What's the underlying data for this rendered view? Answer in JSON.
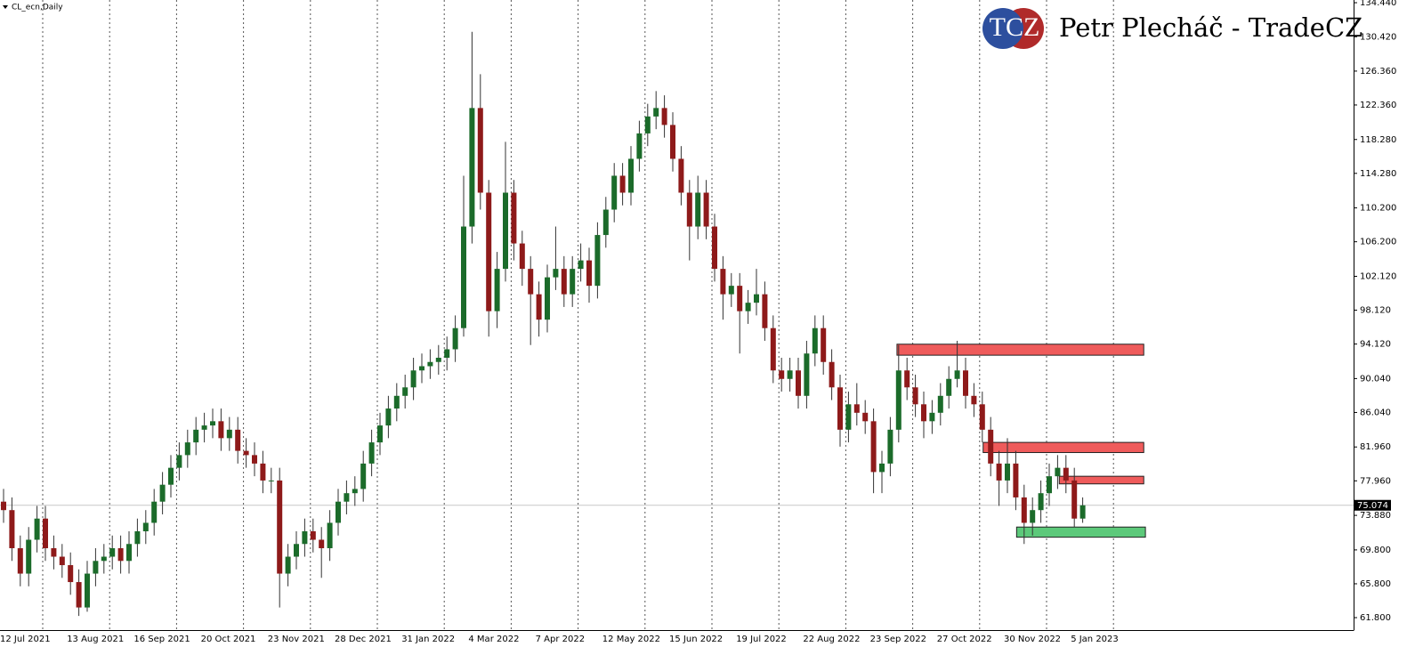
{
  "chart_data": {
    "type": "candlestick",
    "title": "CL_ecn,Daily",
    "brand": {
      "logo": "TCZ",
      "name": "Petr Plecháč - TradeCZ"
    },
    "categories": [
      "12 Jul 2021",
      null,
      null,
      null,
      null,
      null,
      null,
      null,
      "13 Aug 2021",
      null,
      null,
      null,
      null,
      null,
      null,
      null,
      "16 Sep 2021",
      null,
      null,
      null,
      null,
      null,
      null,
      null,
      "20 Oct 2021",
      null,
      null,
      null,
      null,
      null,
      null,
      null,
      "23 Nov 2021",
      null,
      null,
      null,
      null,
      null,
      null,
      null,
      "28 Dec 2021",
      null,
      null,
      null,
      null,
      null,
      null,
      null,
      "31 Jan 2022",
      null,
      null,
      null,
      null,
      null,
      null,
      null,
      "4 Mar 2022",
      null,
      null,
      null,
      null,
      null,
      null,
      null,
      "7 Apr 2022",
      null,
      null,
      null,
      null,
      null,
      null,
      null,
      "12 May 2022",
      null,
      null,
      null,
      null,
      null,
      null,
      null,
      "15 Jun 2022",
      null,
      null,
      null,
      null,
      null,
      null,
      null,
      "19 Jul 2022",
      null,
      null,
      null,
      null,
      null,
      null,
      null,
      "22 Aug 2022",
      null,
      null,
      null,
      null,
      null,
      null,
      null,
      "23 Sep 2022",
      null,
      null,
      null,
      null,
      null,
      null,
      null,
      "27 Oct 2022",
      null,
      null,
      null,
      null,
      null,
      null,
      null,
      "30 Nov 2022",
      null,
      null,
      null,
      null,
      null,
      null,
      null,
      "5 Jan 2023",
      null
    ],
    "open": [
      75.5,
      74.5,
      70,
      67,
      71,
      73.5,
      70,
      69,
      68,
      66,
      63,
      67,
      68.5,
      69,
      70,
      68.5,
      70.5,
      72,
      73,
      75.5,
      77.5,
      79.5,
      81,
      82.5,
      84,
      84.5,
      85,
      83,
      84,
      81.5,
      81,
      80,
      78,
      78,
      67,
      69,
      70.5,
      72,
      71,
      70,
      73,
      75.5,
      76.5,
      77,
      80,
      82.5,
      84.5,
      86.5,
      88,
      89,
      91,
      91.5,
      92,
      92.5,
      93.5,
      96,
      108,
      122,
      112,
      98,
      103,
      112,
      106,
      103,
      100,
      97,
      102,
      103,
      100,
      103,
      104,
      101,
      107,
      110,
      114,
      112,
      116,
      119,
      121,
      122,
      120,
      116,
      112,
      108,
      112,
      108,
      103,
      100,
      101,
      98,
      99,
      100,
      96,
      91,
      90,
      91,
      88,
      93,
      96,
      92,
      89,
      84,
      87,
      86,
      85,
      79,
      80,
      84,
      91,
      89,
      87,
      85,
      86,
      88,
      90,
      91,
      88,
      87,
      84,
      80,
      78,
      80,
      76,
      73,
      74.5,
      76.5,
      78.5,
      79.5,
      78,
      73.5
    ],
    "high": [
      77,
      76,
      71.5,
      72.5,
      75,
      75,
      71.5,
      70.5,
      69.5,
      67.5,
      68.5,
      70,
      70.5,
      71.5,
      71.5,
      72,
      73.5,
      74.5,
      77,
      79,
      81,
      82.5,
      84,
      85.5,
      86,
      86.5,
      86.5,
      85.5,
      85.5,
      83,
      82.5,
      81.5,
      79.5,
      79.5,
      70.5,
      72,
      73.5,
      73.5,
      72.5,
      74.5,
      77,
      78,
      78.5,
      81.5,
      84,
      86,
      88,
      89.5,
      90.5,
      92.5,
      93,
      93.5,
      94,
      95,
      97.5,
      114,
      131,
      126,
      113.5,
      105,
      118,
      113.5,
      107.5,
      104.5,
      101.5,
      103.5,
      108,
      104.5,
      104.5,
      106,
      105.5,
      108.5,
      111.5,
      115.5,
      115.5,
      117.5,
      120.5,
      122.5,
      124,
      123.5,
      121.5,
      117.5,
      113.5,
      114,
      113.5,
      109.5,
      104.5,
      102.5,
      102.5,
      100.5,
      103,
      101.5,
      97.5,
      92.5,
      92.5,
      92.5,
      94.5,
      97.5,
      97.5,
      93.5,
      90.5,
      88.5,
      89.5,
      87.5,
      86.5,
      81.5,
      85.5,
      94,
      92.5,
      90.5,
      88.5,
      87.5,
      89.5,
      91.5,
      94.5,
      92.5,
      89.5,
      88.5,
      85.5,
      81.5,
      83,
      81.5,
      77.5,
      76,
      78,
      80,
      81,
      81,
      79.5,
      76
    ],
    "low": [
      73,
      68.5,
      65.5,
      65.5,
      69.5,
      68.5,
      67.5,
      66.5,
      64.5,
      62,
      62.5,
      65.5,
      67,
      67.5,
      67,
      67,
      69,
      70.5,
      71.5,
      74,
      76,
      78,
      79.5,
      81,
      82.5,
      83,
      81.5,
      81.5,
      80,
      79.5,
      78.5,
      76.5,
      76.5,
      63,
      65.5,
      67.5,
      69,
      69.5,
      66.5,
      68.5,
      71.5,
      74,
      75,
      75.5,
      78.5,
      81,
      83,
      85,
      86.5,
      87.5,
      89.5,
      90,
      90.5,
      91,
      92,
      95,
      106,
      110,
      95,
      96,
      101.5,
      104,
      101,
      94,
      95,
      95.5,
      100.5,
      98.5,
      98.5,
      101.5,
      99,
      99.5,
      105.5,
      108.5,
      110.5,
      110.5,
      114.5,
      117.5,
      119.5,
      118.5,
      114.5,
      110.5,
      104,
      106.5,
      106.5,
      101.5,
      97,
      98.5,
      93,
      96.5,
      97.5,
      94.5,
      89.5,
      88.5,
      88.5,
      86.5,
      86.5,
      91.5,
      90.5,
      87.5,
      82,
      82.5,
      84.5,
      83.5,
      76.5,
      76.5,
      78.5,
      82.5,
      87.5,
      85.5,
      83,
      83.5,
      84.5,
      86.5,
      89,
      86.5,
      85.5,
      82.5,
      78.5,
      75,
      76.5,
      74.5,
      70.5,
      71.5,
      73,
      75,
      77,
      76.5,
      72.5,
      73
    ],
    "close": [
      74.5,
      70,
      67,
      71,
      73.5,
      70,
      69,
      68,
      66,
      63,
      67,
      68.5,
      69,
      70,
      68.5,
      70.5,
      72,
      73,
      75.5,
      77.5,
      79.5,
      81,
      82.5,
      84,
      84.5,
      85,
      83,
      84,
      81.5,
      81,
      80,
      78,
      78,
      67,
      69,
      70.5,
      72,
      71,
      70,
      73,
      75.5,
      76.5,
      77,
      80,
      82.5,
      84.5,
      86.5,
      88,
      89,
      91,
      91.5,
      92,
      92.5,
      93.5,
      96,
      108,
      122,
      112,
      98,
      103,
      112,
      106,
      103,
      100,
      97,
      102,
      103,
      100,
      103,
      104,
      101,
      107,
      110,
      114,
      112,
      116,
      119,
      121,
      122,
      120,
      116,
      112,
      108,
      112,
      108,
      103,
      100,
      101,
      98,
      99,
      100,
      96,
      91,
      90,
      91,
      88,
      93,
      96,
      92,
      89,
      84,
      87,
      86,
      85,
      79,
      80,
      84,
      91,
      89,
      87,
      85,
      86,
      88,
      90,
      91,
      88,
      87,
      84,
      80,
      78,
      80,
      76,
      73,
      74.5,
      76.5,
      78.5,
      79.5,
      78,
      73.5,
      75.07
    ],
    "up_color": "#1b6b2a",
    "down_color": "#8e1a1a",
    "last_price": {
      "value": 75.074,
      "label": "75.074"
    },
    "zones": [
      {
        "color": "#ef5b5b",
        "low": 92.8,
        "high": 94.1,
        "start": 106.8,
        "end": 136.3
      },
      {
        "color": "#ef5b5b",
        "low": 81.3,
        "high": 82.5,
        "start": 117.1,
        "end": 136.3
      },
      {
        "color": "#ef5b5b",
        "low": 77.6,
        "high": 78.5,
        "start": 126.2,
        "end": 136.3
      },
      {
        "color": "#5cc97a",
        "low": 71.3,
        "high": 72.5,
        "start": 121.1,
        "end": 136.5
      }
    ],
    "ylim": [
      60.33,
      134.76
    ],
    "yticks": [
      {
        "value": 61.8,
        "label": "61.800"
      },
      {
        "value": 65.8,
        "label": "65.800"
      },
      {
        "value": 69.8,
        "label": "69.800"
      },
      {
        "value": 73.88,
        "label": "73.880"
      },
      {
        "value": 77.96,
        "label": "77.960"
      },
      {
        "value": 81.96,
        "label": "81.960"
      },
      {
        "value": 86.04,
        "label": "86.040"
      },
      {
        "value": 90.04,
        "label": "90.040"
      },
      {
        "value": 94.12,
        "label": "94.120"
      },
      {
        "value": 98.12,
        "label": "98.120"
      },
      {
        "value": 102.12,
        "label": "102.120"
      },
      {
        "value": 106.2,
        "label": "106.200"
      },
      {
        "value": 110.2,
        "label": "110.200"
      },
      {
        "value": 114.28,
        "label": "114.280"
      },
      {
        "value": 118.28,
        "label": "118.280"
      },
      {
        "value": 122.36,
        "label": "122.360"
      },
      {
        "value": 126.36,
        "label": "126.360"
      },
      {
        "value": 130.42,
        "label": "130.420"
      },
      {
        "value": 134.44,
        "label": "134.440"
      }
    ]
  }
}
